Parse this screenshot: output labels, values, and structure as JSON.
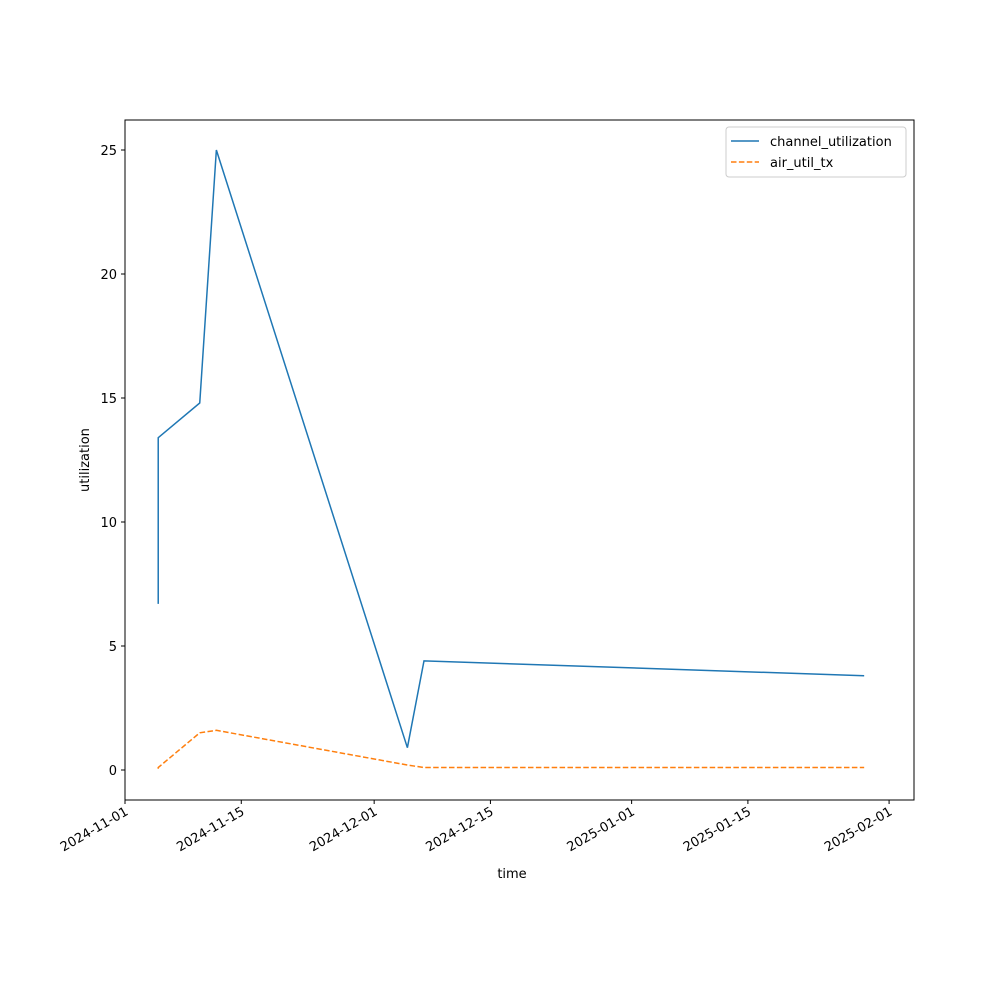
{
  "chart_data": {
    "type": "line",
    "x_label": "time",
    "y_label": "utilization",
    "x": [
      "2024-11-05",
      "2024-11-05",
      "2024-11-10",
      "2024-11-12",
      "2024-12-05",
      "2024-12-07",
      "2025-01-29"
    ],
    "series": [
      {
        "name": "channel_utilization",
        "color": "#1f77b4",
        "dash": "solid",
        "values": [
          6.7,
          13.4,
          14.8,
          25.0,
          0.9,
          4.4,
          3.8
        ]
      },
      {
        "name": "air_util_tx",
        "color": "#ff7f0e",
        "dash": "dashed",
        "values": [
          0.05,
          0.1,
          1.5,
          1.6,
          0.2,
          0.1,
          0.1
        ]
      }
    ],
    "xlim": [
      "2024-11-01",
      "2025-02-04"
    ],
    "xticks": [
      "2024-11-01",
      "2024-11-15",
      "2024-12-01",
      "2024-12-15",
      "2025-01-01",
      "2025-01-15",
      "2025-02-01"
    ],
    "ylim": [
      -1.21,
      26.21
    ],
    "yticks": [
      0,
      5,
      10,
      15,
      20,
      25
    ],
    "grid": false,
    "legend": "upper right"
  }
}
